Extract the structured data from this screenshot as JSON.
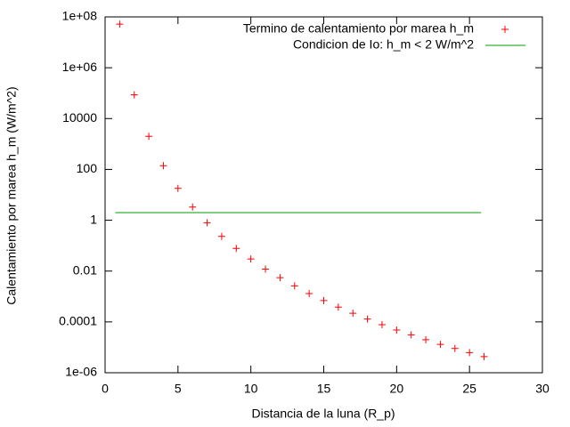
{
  "chart_data": {
    "type": "scatter",
    "xlabel": "Distancia de la luna (R_p)",
    "ylabel": "Calentamiento por marea h_m (W/m^2)",
    "xlim": [
      0,
      30
    ],
    "xticks": [
      0,
      5,
      10,
      15,
      20,
      25,
      30
    ],
    "ylim": [
      1e-06,
      100000000.0
    ],
    "log_y": true,
    "yticks": [
      {
        "value": 1e-06,
        "label": "1e-06"
      },
      0.0001,
      0.01,
      1,
      100,
      10000,
      {
        "value": 1000000.0,
        "label": "1e+06"
      },
      {
        "value": 100000000.0,
        "label": "1e+08"
      }
    ],
    "legend": "top-right",
    "series": [
      {
        "name": "Termino de calentamiento por marea h_m",
        "color": "#ff0000",
        "style": "points",
        "x": [
          1,
          2,
          3,
          4,
          5,
          6,
          7,
          8,
          9,
          10,
          11,
          12,
          13,
          14,
          15,
          16,
          17,
          18,
          19,
          20,
          21,
          22,
          23,
          24,
          25,
          26
        ],
        "values": [
          52000000.0,
          86000.0,
          2000,
          140,
          18,
          3.3,
          0.8,
          0.23,
          0.078,
          0.03,
          0.012,
          0.0055,
          0.0026,
          0.0013,
          0.00069,
          0.00038,
          0.00022,
          0.00013,
          7.8e-05,
          4.8e-05,
          3.1e-05,
          2e-05,
          1.3e-05,
          9e-06,
          6.2e-06,
          4.3e-06
        ]
      },
      {
        "name": "Condicion de Io: h_m < 2 W/m^2",
        "color": "#00a000",
        "style": "line",
        "x": [
          0.7,
          25.8
        ],
        "values": [
          2,
          2
        ]
      }
    ]
  }
}
